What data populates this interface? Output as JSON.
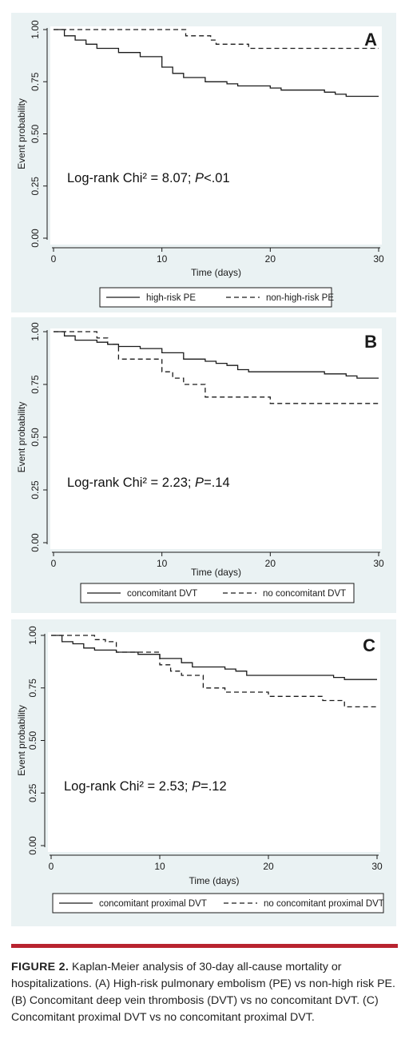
{
  "chart_data": [
    {
      "type": "line",
      "panel_label": "A",
      "ylabel": "Event probability",
      "xlabel": "Time (days)",
      "xlim": [
        0,
        30
      ],
      "ylim": [
        0,
        1
      ],
      "xticks": [
        "0",
        "10",
        "20",
        "30"
      ],
      "yticks": [
        "0.00",
        "0.25",
        "0.50",
        "0.75",
        "1.00"
      ],
      "annotation": {
        "prefix": "Log-rank Chi² = 8.07; ",
        "p_symbol": "P",
        "suffix": "<.01"
      },
      "legend_position": "bottom",
      "series": [
        {
          "name": "high-risk PE",
          "style": "solid",
          "points": [
            [
              0,
              1.0
            ],
            [
              1,
              0.97
            ],
            [
              2,
              0.95
            ],
            [
              3,
              0.93
            ],
            [
              4,
              0.91
            ],
            [
              6,
              0.89
            ],
            [
              8,
              0.87
            ],
            [
              10,
              0.82
            ],
            [
              11,
              0.79
            ],
            [
              12,
              0.77
            ],
            [
              14,
              0.75
            ],
            [
              16,
              0.74
            ],
            [
              17,
              0.73
            ],
            [
              20,
              0.72
            ],
            [
              21,
              0.71
            ],
            [
              25,
              0.7
            ],
            [
              26,
              0.69
            ],
            [
              27,
              0.68
            ],
            [
              30,
              0.68
            ]
          ]
        },
        {
          "name": "non-high-risk PE",
          "style": "dashed",
          "points": [
            [
              0,
              1.0
            ],
            [
              12,
              1.0
            ],
            [
              12.2,
              0.97
            ],
            [
              14,
              0.97
            ],
            [
              14.5,
              0.95
            ],
            [
              15,
              0.93
            ],
            [
              17,
              0.93
            ],
            [
              18,
              0.91
            ],
            [
              30,
              0.91
            ]
          ]
        }
      ]
    },
    {
      "type": "line",
      "panel_label": "B",
      "ylabel": "Event probability",
      "xlabel": "Time (days)",
      "xlim": [
        0,
        30
      ],
      "ylim": [
        0,
        1
      ],
      "xticks": [
        "0",
        "10",
        "20",
        "30"
      ],
      "yticks": [
        "0.00",
        "0.25",
        "0.50",
        "0.75",
        "1.00"
      ],
      "annotation": {
        "prefix": "Log-rank Chi² = 2.23; ",
        "p_symbol": "P",
        "suffix": "=.14"
      },
      "legend_position": "bottom",
      "series": [
        {
          "name": "concomitant DVT",
          "style": "solid",
          "points": [
            [
              0,
              1.0
            ],
            [
              1,
              0.98
            ],
            [
              2,
              0.96
            ],
            [
              4,
              0.95
            ],
            [
              5,
              0.94
            ],
            [
              6,
              0.93
            ],
            [
              8,
              0.92
            ],
            [
              10,
              0.9
            ],
            [
              12,
              0.87
            ],
            [
              14,
              0.86
            ],
            [
              15,
              0.85
            ],
            [
              16,
              0.84
            ],
            [
              17,
              0.82
            ],
            [
              18,
              0.81
            ],
            [
              25,
              0.8
            ],
            [
              27,
              0.79
            ],
            [
              28,
              0.78
            ],
            [
              30,
              0.78
            ]
          ]
        },
        {
          "name": "no concomitant DVT",
          "style": "dashed",
          "points": [
            [
              0,
              1.0
            ],
            [
              4,
              1.0
            ],
            [
              4,
              0.97
            ],
            [
              5,
              0.94
            ],
            [
              6,
              0.87
            ],
            [
              10,
              0.87
            ],
            [
              10,
              0.81
            ],
            [
              11,
              0.78
            ],
            [
              12,
              0.75
            ],
            [
              14,
              0.75
            ],
            [
              14,
              0.69
            ],
            [
              20,
              0.69
            ],
            [
              20,
              0.66
            ],
            [
              30,
              0.66
            ]
          ]
        }
      ]
    },
    {
      "type": "line",
      "panel_label": "C",
      "ylabel": "Event probability",
      "xlabel": "Time (days)",
      "xlim": [
        0,
        30
      ],
      "ylim": [
        0,
        1
      ],
      "xticks": [
        "0",
        "10",
        "20",
        "30"
      ],
      "yticks": [
        "0.00",
        "0.25",
        "0.50",
        "0.75",
        "1.00"
      ],
      "annotation": {
        "prefix": "Log-rank Chi² = 2.53; ",
        "p_symbol": "P",
        "suffix": "=.12"
      },
      "legend_position": "bottom",
      "series": [
        {
          "name": "concomitant proximal DVT",
          "style": "solid",
          "points": [
            [
              0,
              1.0
            ],
            [
              1,
              0.97
            ],
            [
              2,
              0.96
            ],
            [
              3,
              0.94
            ],
            [
              4,
              0.93
            ],
            [
              6,
              0.92
            ],
            [
              8,
              0.91
            ],
            [
              10,
              0.89
            ],
            [
              12,
              0.87
            ],
            [
              13,
              0.85
            ],
            [
              16,
              0.84
            ],
            [
              17,
              0.83
            ],
            [
              18,
              0.81
            ],
            [
              26,
              0.8
            ],
            [
              27,
              0.79
            ],
            [
              30,
              0.79
            ]
          ]
        },
        {
          "name": "no concomitant proximal DVT",
          "style": "dashed",
          "points": [
            [
              0,
              1.0
            ],
            [
              4,
              1.0
            ],
            [
              4,
              0.98
            ],
            [
              5,
              0.97
            ],
            [
              6,
              0.92
            ],
            [
              10,
              0.92
            ],
            [
              10,
              0.86
            ],
            [
              11,
              0.83
            ],
            [
              12,
              0.81
            ],
            [
              14,
              0.81
            ],
            [
              14,
              0.75
            ],
            [
              16,
              0.73
            ],
            [
              20,
              0.73
            ],
            [
              20,
              0.71
            ],
            [
              25,
              0.71
            ],
            [
              25,
              0.69
            ],
            [
              27,
              0.68
            ],
            [
              27,
              0.66
            ],
            [
              30,
              0.66
            ]
          ]
        }
      ]
    }
  ],
  "caption": {
    "label": "FIGURE 2.",
    "text": " Kaplan-Meier analysis of 30-day all-cause mortality or hospitalizations. (A) High-risk pulmonary embolism (PE) vs non-high risk PE. (B) Concomitant deep vein thrombosis (DVT) vs no concomitant DVT. (C) Concomitant proximal DVT vs no concomitant proximal DVT."
  }
}
